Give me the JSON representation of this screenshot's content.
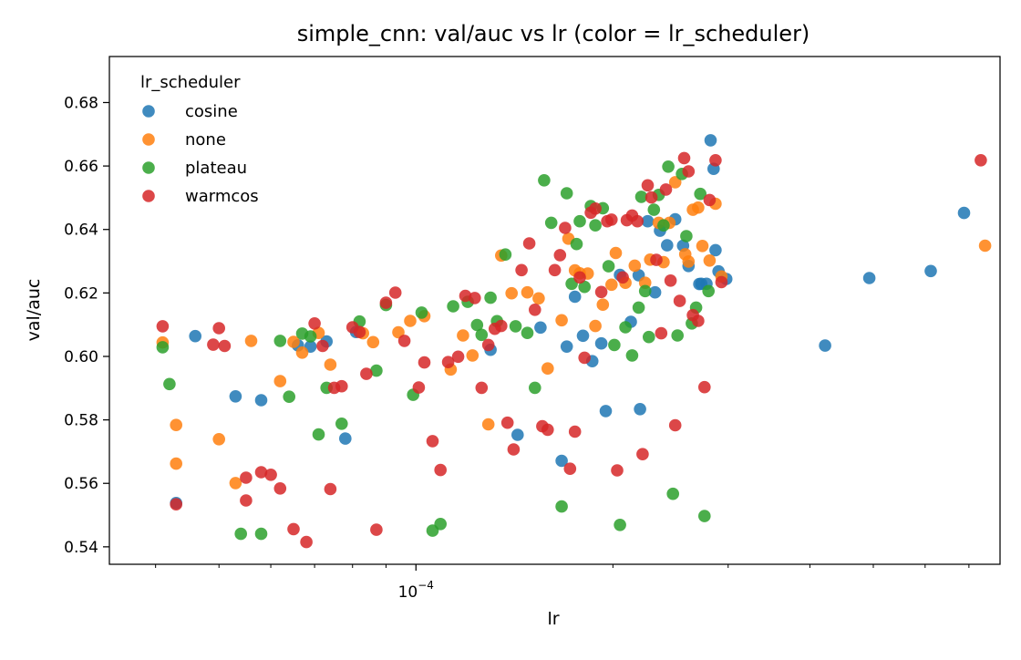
{
  "chart_data": {
    "type": "scatter",
    "title": "simple_cnn: val/auc vs lr (color = lr_scheduler)",
    "xlabel": "lr",
    "ylabel": "val/auc",
    "x_scale": "log",
    "xlim": [
      3.4e-05,
      0.000781
    ],
    "ylim": [
      0.5345,
      0.6945
    ],
    "x_tick_labels": [
      {
        "value": 0.0001,
        "label": "10^-4"
      }
    ],
    "y_ticks": [
      0.54,
      0.56,
      0.58,
      0.6,
      0.62,
      0.64,
      0.66,
      0.68
    ],
    "y_tick_labels": [
      "0.54",
      "0.56",
      "0.58",
      "0.60",
      "0.62",
      "0.64",
      "0.66",
      "0.68"
    ],
    "grid": false,
    "legend": {
      "title": "lr_scheduler",
      "position": "top-left"
    },
    "series": [
      {
        "name": "cosine",
        "color": "#1f77b4",
        "x": [
          4.3e-05,
          4.6e-05,
          5.3e-05,
          5.8e-05,
          6.6e-05,
          6.9e-05,
          7.3e-05,
          7.8e-05,
          8.1e-05,
          0.00013,
          0.000143,
          0.000155,
          0.000167,
          0.00017,
          0.000175,
          0.00018,
          0.000186,
          0.000192,
          0.000195,
          0.000205,
          0.000213,
          0.000219,
          0.00022,
          0.000226,
          0.000232,
          0.000236,
          0.000242,
          0.000249,
          0.000256,
          0.000261,
          0.000271,
          0.000273,
          0.000278,
          0.000282,
          0.000285,
          0.000287,
          0.00029,
          0.000298,
          0.000422,
          0.000493,
          0.000612,
          0.000688
        ],
        "y": [
          0.5538,
          0.6064,
          0.5874,
          0.5862,
          0.6035,
          0.6031,
          0.6047,
          0.5741,
          0.6077,
          0.6021,
          0.5753,
          0.6091,
          0.5671,
          0.6031,
          0.6188,
          0.6065,
          0.5985,
          0.6041,
          0.5828,
          0.6257,
          0.6109,
          0.6256,
          0.5834,
          0.6426,
          0.6202,
          0.6396,
          0.635,
          0.6432,
          0.6349,
          0.6285,
          0.6228,
          0.6229,
          0.6229,
          0.6681,
          0.6591,
          0.6335,
          0.6268,
          0.6244,
          0.6034,
          0.6247,
          0.6269,
          0.6452
        ]
      },
      {
        "name": "none",
        "color": "#ff7f0e",
        "x": [
          4.1e-05,
          4.3e-05,
          4.3e-05,
          5e-05,
          5.3e-05,
          5.6e-05,
          6.2e-05,
          6.5e-05,
          6.7e-05,
          7.1e-05,
          7.4e-05,
          8.3e-05,
          8.6e-05,
          9.4e-05,
          9.8e-05,
          0.000103,
          0.000113,
          0.000118,
          0.000122,
          0.000129,
          0.000135,
          0.00014,
          0.000148,
          0.000154,
          0.000159,
          0.000167,
          0.000171,
          0.000175,
          0.000178,
          0.000183,
          0.000188,
          0.000193,
          0.000199,
          0.000202,
          0.000209,
          0.000216,
          0.000224,
          0.000228,
          0.000235,
          0.000239,
          0.000244,
          0.000249,
          0.000258,
          0.000261,
          0.000265,
          0.00027,
          0.000274,
          0.000281,
          0.000287,
          0.000293,
          0.000741
        ],
        "y": [
          0.6044,
          0.5784,
          0.5662,
          0.5739,
          0.5601,
          0.6049,
          0.5922,
          0.6046,
          0.6012,
          0.6074,
          0.5974,
          0.6073,
          0.6045,
          0.6076,
          0.6112,
          0.6127,
          0.5959,
          0.6066,
          0.6003,
          0.5786,
          0.6318,
          0.6199,
          0.6202,
          0.6183,
          0.5962,
          0.6114,
          0.6371,
          0.6271,
          0.6262,
          0.6261,
          0.6096,
          0.6163,
          0.6226,
          0.6326,
          0.6232,
          0.6286,
          0.6232,
          0.6305,
          0.6421,
          0.6297,
          0.6421,
          0.6549,
          0.6322,
          0.6299,
          0.6462,
          0.6469,
          0.6348,
          0.6302,
          0.6481,
          0.6252,
          0.6349
        ]
      },
      {
        "name": "plateau",
        "color": "#2ca02c",
        "x": [
          4.1e-05,
          4.2e-05,
          5.4e-05,
          5.8e-05,
          6.2e-05,
          6.4e-05,
          6.7e-05,
          6.9e-05,
          7.1e-05,
          7.3e-05,
          7.7e-05,
          8.2e-05,
          8.7e-05,
          9e-05,
          9.9e-05,
          0.000102,
          0.000106,
          0.000109,
          0.000114,
          0.00012,
          0.000124,
          0.000126,
          0.00013,
          0.000133,
          0.000137,
          0.000142,
          0.000148,
          0.000152,
          0.000157,
          0.000161,
          0.000167,
          0.00017,
          0.000173,
          0.000176,
          0.000178,
          0.000181,
          0.000185,
          0.000188,
          0.000193,
          0.000197,
          0.000201,
          0.000205,
          0.000209,
          0.000214,
          0.000219,
          0.000221,
          0.000224,
          0.000227,
          0.000231,
          0.000235,
          0.000239,
          0.000243,
          0.000247,
          0.000251,
          0.000255,
          0.000259,
          0.000264,
          0.000268,
          0.000272,
          0.000276,
          0.00028
        ],
        "y": [
          0.6029,
          0.5913,
          0.5441,
          0.5441,
          0.6049,
          0.5873,
          0.6072,
          0.6063,
          0.5754,
          0.5901,
          0.5788,
          0.611,
          0.5955,
          0.6162,
          0.5879,
          0.6138,
          0.5451,
          0.5472,
          0.6158,
          0.6172,
          0.6099,
          0.6068,
          0.6185,
          0.6111,
          0.6321,
          0.6095,
          0.6074,
          0.5901,
          0.6555,
          0.6421,
          0.5527,
          0.6514,
          0.6229,
          0.6354,
          0.6426,
          0.6219,
          0.6474,
          0.6413,
          0.6467,
          0.6284,
          0.6036,
          0.5469,
          0.6092,
          0.6003,
          0.6154,
          0.6503,
          0.6206,
          0.6061,
          0.6462,
          0.6509,
          0.6413,
          0.6598,
          0.5567,
          0.6066,
          0.6575,
          0.6379,
          0.6104,
          0.6154,
          0.6512,
          0.5497,
          0.6206
        ]
      },
      {
        "name": "warmcos",
        "color": "#d62728",
        "x": [
          4.1e-05,
          4.3e-05,
          4.9e-05,
          5e-05,
          5.1e-05,
          5.5e-05,
          5.5e-05,
          5.8e-05,
          6e-05,
          6.2e-05,
          6.5e-05,
          6.8e-05,
          7e-05,
          7.2e-05,
          7.4e-05,
          7.5e-05,
          7.7e-05,
          8e-05,
          8.2e-05,
          8.4e-05,
          8.7e-05,
          9e-05,
          9.3e-05,
          9.6e-05,
          0.000101,
          0.000103,
          0.000106,
          0.000109,
          0.000112,
          0.000116,
          0.000119,
          0.000123,
          0.000126,
          0.000129,
          0.000132,
          0.000135,
          0.000138,
          0.000141,
          0.000145,
          0.000149,
          0.000152,
          0.000156,
          0.000159,
          0.000163,
          0.000166,
          0.000169,
          0.000172,
          0.000175,
          0.000178,
          0.000181,
          0.000185,
          0.000188,
          0.000192,
          0.000196,
          0.000199,
          0.000203,
          0.000207,
          0.00021,
          0.000214,
          0.000218,
          0.000222,
          0.000226,
          0.000229,
          0.000233,
          0.000237,
          0.000241,
          0.000245,
          0.000249,
          0.000253,
          0.000257,
          0.000261,
          0.000265,
          0.00027,
          0.000276,
          0.000281,
          0.000287,
          0.000293,
          0.00073
        ],
        "y": [
          0.6095,
          0.5534,
          0.6037,
          0.6089,
          0.6033,
          0.5618,
          0.5546,
          0.5635,
          0.5627,
          0.5584,
          0.5456,
          0.5415,
          0.6104,
          0.6033,
          0.5582,
          0.5901,
          0.5906,
          0.6092,
          0.6077,
          0.5945,
          0.5454,
          0.6169,
          0.6201,
          0.6049,
          0.5902,
          0.5981,
          0.5733,
          0.5642,
          0.5982,
          0.5999,
          0.6191,
          0.6184,
          0.5901,
          0.6036,
          0.6087,
          0.6096,
          0.5791,
          0.5707,
          0.6272,
          0.6356,
          0.6147,
          0.578,
          0.5769,
          0.6272,
          0.6319,
          0.6405,
          0.5646,
          0.5763,
          0.6249,
          0.5996,
          0.6453,
          0.6466,
          0.6203,
          0.6426,
          0.6431,
          0.5641,
          0.6249,
          0.6429,
          0.6444,
          0.6426,
          0.5692,
          0.6539,
          0.6501,
          0.6304,
          0.6073,
          0.6526,
          0.6239,
          0.5783,
          0.6175,
          0.6625,
          0.6583,
          0.613,
          0.6112,
          0.5903,
          0.6493,
          0.6618,
          0.6234,
          0.6618
        ]
      }
    ]
  }
}
